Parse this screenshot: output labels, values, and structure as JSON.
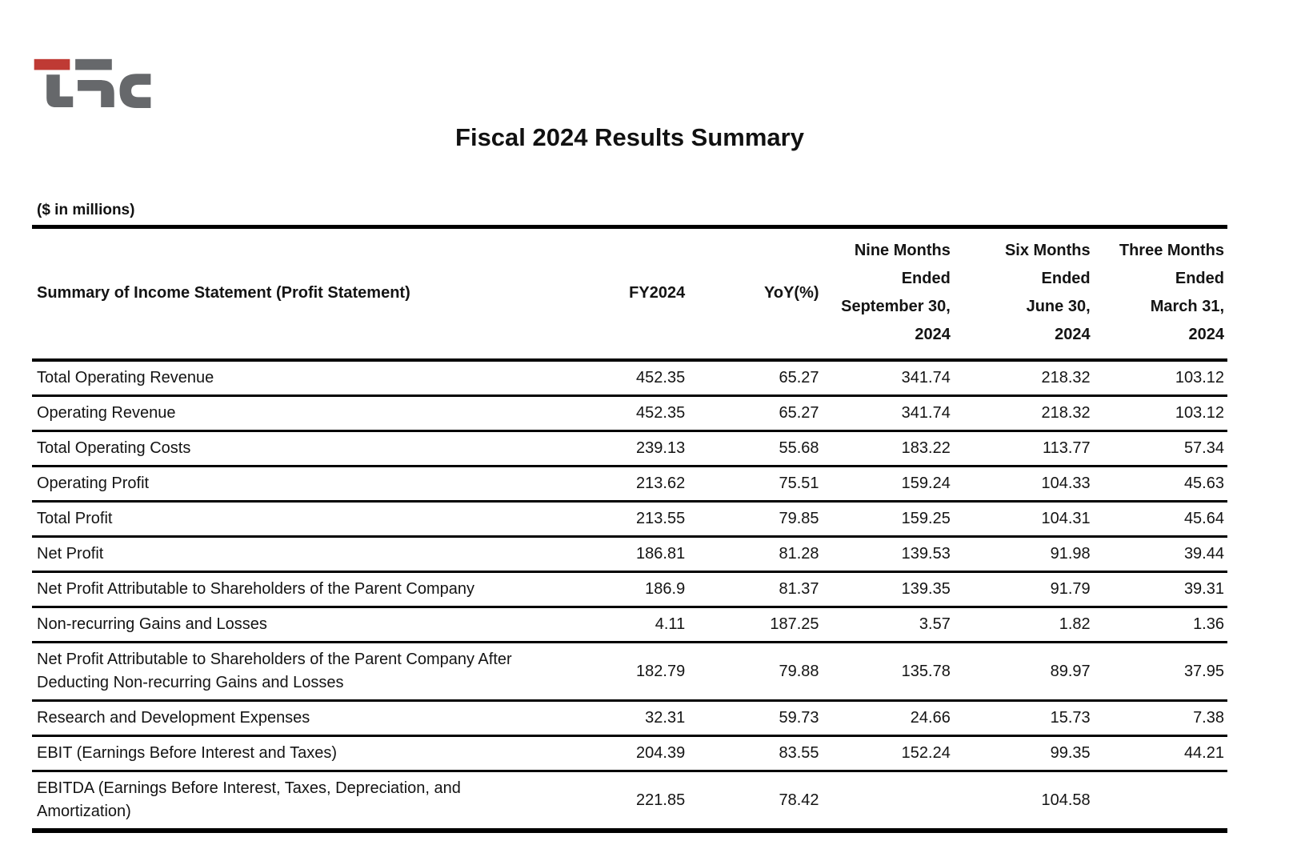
{
  "logo": {
    "name": "TFC",
    "red_color": "#bf3a34",
    "gray_color": "#66686b"
  },
  "title": "Fiscal 2024 Results Summary",
  "units_note": "($ in millions)",
  "table": {
    "row_label_header": "Summary of Income Statement (Profit Statement)",
    "value_column_headers": [
      "FY2024",
      "YoY(%)",
      "Nine Months\nEnded\nSeptember 30,\n2024",
      "Six Months\nEnded\nJune 30,\n2024",
      "Three Months\nEnded\nMarch 31,\n2024"
    ],
    "rows": [
      {
        "label": "Total Operating Revenue",
        "values": [
          "452.35",
          "65.27",
          "341.74",
          "218.32",
          "103.12"
        ]
      },
      {
        "label": "Operating Revenue",
        "values": [
          "452.35",
          "65.27",
          "341.74",
          "218.32",
          "103.12"
        ]
      },
      {
        "label": "Total Operating Costs",
        "values": [
          "239.13",
          "55.68",
          "183.22",
          "113.77",
          "57.34"
        ]
      },
      {
        "label": "Operating Profit",
        "values": [
          "213.62",
          "75.51",
          "159.24",
          "104.33",
          "45.63"
        ]
      },
      {
        "label": "Total Profit",
        "values": [
          "213.55",
          "79.85",
          "159.25",
          "104.31",
          "45.64"
        ]
      },
      {
        "label": "Net Profit",
        "values": [
          "186.81",
          "81.28",
          "139.53",
          "91.98",
          "39.44"
        ]
      },
      {
        "label": "Net Profit Attributable to Shareholders of the Parent Company",
        "values": [
          "186.9",
          "81.37",
          "139.35",
          "91.79",
          "39.31"
        ]
      },
      {
        "label": "Non-recurring Gains and Losses",
        "values": [
          "4.11",
          "187.25",
          "3.57",
          "1.82",
          "1.36"
        ]
      },
      {
        "label": "Net Profit Attributable to Shareholders of the Parent Company After Deducting Non-recurring Gains and Losses",
        "values": [
          "182.79",
          "79.88",
          "135.78",
          "89.97",
          "37.95"
        ]
      },
      {
        "label": "Research and Development Expenses",
        "values": [
          "32.31",
          "59.73",
          "24.66",
          "15.73",
          "7.38"
        ]
      },
      {
        "label": "EBIT (Earnings Before Interest and Taxes)",
        "values": [
          "204.39",
          "83.55",
          "152.24",
          "99.35",
          "44.21"
        ]
      },
      {
        "label": "EBITDA (Earnings Before Interest, Taxes, Depreciation, and Amortization)",
        "values": [
          "221.85",
          "78.42",
          "",
          "104.58",
          ""
        ]
      }
    ]
  }
}
